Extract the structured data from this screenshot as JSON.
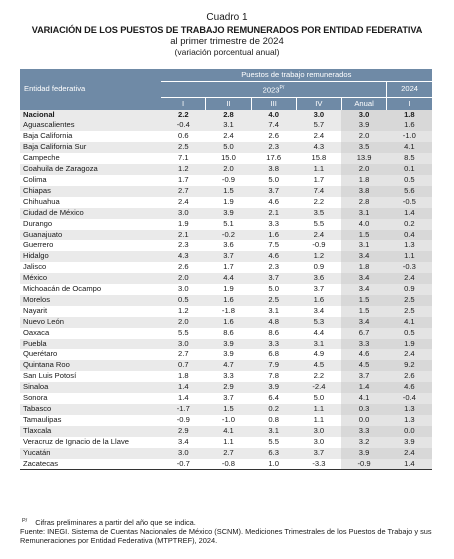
{
  "titles": {
    "line1": "Cuadro 1",
    "line2": "VARIACIÓN DE LOS PUESTOS DE TRABAJO REMUNERADOS POR ENTIDAD FEDERATIVA",
    "line3": "al primer trimestre de 2024",
    "line4": "(variación porcentual anual)"
  },
  "header": {
    "entity": "Entidad federativa",
    "group": "Puestos de trabajo remunerados",
    "year2023": "2023",
    "year2023_sup": "P/",
    "year2024": "2024",
    "cols": [
      "I",
      "II",
      "III",
      "IV",
      "Anual",
      "I"
    ]
  },
  "rows": [
    {
      "name": "Nacional",
      "v": [
        "2.2",
        "2.8",
        "4.0",
        "3.0",
        "3.0",
        "1.8"
      ]
    },
    {
      "name": "Aguascalientes",
      "v": [
        "-0.4",
        "3.1",
        "7.4",
        "5.7",
        "3.9",
        "1.6"
      ]
    },
    {
      "name": "Baja California",
      "v": [
        "0.6",
        "2.4",
        "2.6",
        "2.4",
        "2.0",
        "-1.0"
      ]
    },
    {
      "name": "Baja California Sur",
      "v": [
        "2.5",
        "5.0",
        "2.3",
        "4.3",
        "3.5",
        "4.1"
      ]
    },
    {
      "name": "Campeche",
      "v": [
        "7.1",
        "15.0",
        "17.6",
        "15.8",
        "13.9",
        "8.5"
      ]
    },
    {
      "name": "Coahuila de Zaragoza",
      "v": [
        "1.2",
        "2.0",
        "3.8",
        "1.1",
        "2.0",
        "0.1"
      ]
    },
    {
      "name": "Colima",
      "v": [
        "1.7",
        "-0.9",
        "5.0",
        "1.7",
        "1.8",
        "0.5"
      ]
    },
    {
      "name": "Chiapas",
      "v": [
        "2.7",
        "1.5",
        "3.7",
        "7.4",
        "3.8",
        "5.6"
      ]
    },
    {
      "name": "Chihuahua",
      "v": [
        "2.4",
        "1.9",
        "4.6",
        "2.2",
        "2.8",
        "-0.5"
      ]
    },
    {
      "name": "Ciudad de México",
      "v": [
        "3.0",
        "3.9",
        "2.1",
        "3.5",
        "3.1",
        "1.4"
      ]
    },
    {
      "name": "Durango",
      "v": [
        "1.9",
        "5.1",
        "3.3",
        "5.5",
        "4.0",
        "0.2"
      ]
    },
    {
      "name": "Guanajuato",
      "v": [
        "2.1",
        "-0.2",
        "1.6",
        "2.4",
        "1.5",
        "0.4"
      ]
    },
    {
      "name": "Guerrero",
      "v": [
        "2.3",
        "3.6",
        "7.5",
        "-0.9",
        "3.1",
        "1.3"
      ]
    },
    {
      "name": "Hidalgo",
      "v": [
        "4.3",
        "3.7",
        "4.6",
        "1.2",
        "3.4",
        "1.1"
      ]
    },
    {
      "name": "Jalisco",
      "v": [
        "2.6",
        "1.7",
        "2.3",
        "0.9",
        "1.8",
        "-0.3"
      ]
    },
    {
      "name": "México",
      "v": [
        "2.0",
        "4.4",
        "3.7",
        "3.6",
        "3.4",
        "2.4"
      ]
    },
    {
      "name": "Michoacán de Ocampo",
      "v": [
        "3.0",
        "1.9",
        "5.0",
        "3.7",
        "3.4",
        "0.9"
      ]
    },
    {
      "name": "Morelos",
      "v": [
        "0.5",
        "1.6",
        "2.5",
        "1.6",
        "1.5",
        "2.5"
      ]
    },
    {
      "name": "Nayarit",
      "v": [
        "1.2",
        "-1.8",
        "3.1",
        "3.4",
        "1.5",
        "2.5"
      ]
    },
    {
      "name": "Nuevo León",
      "v": [
        "2.0",
        "1.6",
        "4.8",
        "5.3",
        "3.4",
        "4.1"
      ]
    },
    {
      "name": "Oaxaca",
      "v": [
        "5.5",
        "8.6",
        "8.6",
        "4.4",
        "6.7",
        "0.5"
      ]
    },
    {
      "name": "Puebla",
      "v": [
        "3.0",
        "3.9",
        "3.3",
        "3.1",
        "3.3",
        "1.9"
      ]
    },
    {
      "name": "Querétaro",
      "v": [
        "2.7",
        "3.9",
        "6.8",
        "4.9",
        "4.6",
        "2.4"
      ]
    },
    {
      "name": "Quintana Roo",
      "v": [
        "0.7",
        "4.7",
        "7.9",
        "4.5",
        "4.5",
        "9.2"
      ]
    },
    {
      "name": "San Luis Potosí",
      "v": [
        "1.8",
        "3.3",
        "7.8",
        "2.2",
        "3.7",
        "2.6"
      ]
    },
    {
      "name": "Sinaloa",
      "v": [
        "1.4",
        "2.9",
        "3.9",
        "-2.4",
        "1.4",
        "4.6"
      ]
    },
    {
      "name": "Sonora",
      "v": [
        "1.4",
        "3.7",
        "6.4",
        "5.0",
        "4.1",
        "-0.4"
      ]
    },
    {
      "name": "Tabasco",
      "v": [
        "-1.7",
        "1.5",
        "0.2",
        "1.1",
        "0.3",
        "1.3"
      ]
    },
    {
      "name": "Tamaulipas",
      "v": [
        "-0.9",
        "-1.0",
        "0.8",
        "1.1",
        "0.0",
        "1.3"
      ]
    },
    {
      "name": "Tlaxcala",
      "v": [
        "2.9",
        "4.1",
        "3.1",
        "3.0",
        "3.3",
        "0.0"
      ]
    },
    {
      "name": "Veracruz de Ignacio de la Llave",
      "v": [
        "3.4",
        "1.1",
        "5.5",
        "3.0",
        "3.2",
        "3.9"
      ]
    },
    {
      "name": "Yucatán",
      "v": [
        "3.0",
        "2.7",
        "6.3",
        "3.7",
        "3.9",
        "2.4"
      ]
    },
    {
      "name": "Zacatecas",
      "v": [
        "-0.7",
        "-0.8",
        "1.0",
        "-3.3",
        "-0.9",
        "1.4"
      ]
    }
  ],
  "notes": {
    "sup": "P/",
    "prelim": "Cifras preliminares a partir del año que se indica.",
    "source": "Fuente: INEGI. Sistema de Cuentas Nacionales de México (SCNM). Mediciones Trimestrales de los Puestos de Trabajo y sus Remuneraciones por Entidad Federativa (MTPTREF), 2024."
  }
}
